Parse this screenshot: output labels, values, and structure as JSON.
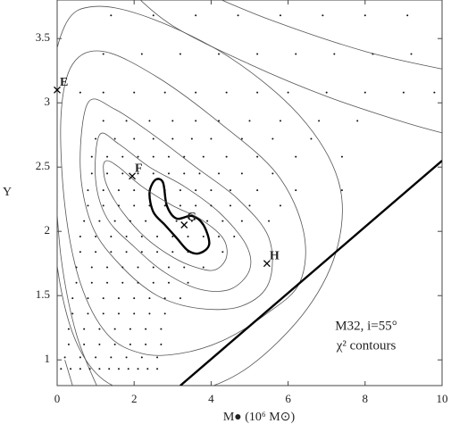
{
  "chart_data": {
    "type": "contour",
    "xlabel": "M● (10⁶ M⊙)",
    "ylabel": "Υ",
    "annotations": [
      "M32, i=55°",
      "χ² contours"
    ],
    "xlim": [
      0,
      10
    ],
    "ylim": [
      0.8,
      3.8
    ],
    "xticks": [
      0,
      2,
      4,
      6,
      8,
      10
    ],
    "yticks": [
      1,
      1.5,
      2,
      2.5,
      3,
      3.5
    ],
    "line_color": "#555",
    "best_color": "#000",
    "contours": [
      {
        "x": [
          2.4,
          2.55,
          2.75,
          2.85,
          3.1,
          3.5,
          3.8,
          3.95,
          3.7,
          3.4,
          3.1,
          2.8,
          2.5,
          2.4
        ],
        "y": [
          2.3,
          2.4,
          2.38,
          2.2,
          2.1,
          2.12,
          2.05,
          1.9,
          1.83,
          1.85,
          1.95,
          2.05,
          2.15,
          2.3
        ],
        "bold": true
      },
      {
        "x": [
          1.3,
          1.6,
          2.2,
          3,
          3.7,
          4.3,
          4.4,
          4.1,
          3.6,
          3,
          2.3,
          1.7,
          1.3,
          1.2,
          1.3
        ],
        "y": [
          2.55,
          2.5,
          2.35,
          2.2,
          2.1,
          1.95,
          1.8,
          1.7,
          1.72,
          1.8,
          1.95,
          2.15,
          2.35,
          2.5,
          2.55
        ]
      },
      {
        "x": [
          1.1,
          1.6,
          2.4,
          3.3,
          4.2,
          4.9,
          5,
          4.5,
          3.7,
          2.8,
          2,
          1.3,
          1,
          1.1
        ],
        "y": [
          2.75,
          2.68,
          2.5,
          2.35,
          2.15,
          1.9,
          1.7,
          1.55,
          1.55,
          1.68,
          1.88,
          2.1,
          2.4,
          2.75
        ]
      },
      {
        "x": [
          0.8,
          1.5,
          2.5,
          3.6,
          4.7,
          5.5,
          5.5,
          4.8,
          3.7,
          2.6,
          1.6,
          0.9,
          0.6,
          0.8
        ],
        "y": [
          3,
          2.95,
          2.75,
          2.5,
          2.25,
          1.95,
          1.6,
          1.42,
          1.4,
          1.5,
          1.75,
          2.05,
          2.5,
          3
        ]
      },
      {
        "x": [
          6.3,
          6.4,
          5.7,
          4.2,
          2.6,
          1.2,
          0.4,
          0.1,
          0.2,
          0.6,
          1.3,
          2.2,
          3.2,
          4.3,
          5.4,
          6.3
        ],
        "y": [
          1.6,
          2,
          2.45,
          2.85,
          3.2,
          3.4,
          3.3,
          2.9,
          2.2,
          1.6,
          1.2,
          1.05,
          1.05,
          1.15,
          1.35,
          1.6
        ]
      },
      {
        "x": [
          7.3,
          7.3,
          6.3,
          4.5,
          2.5,
          1,
          0.2,
          -0.2,
          -0.1,
          0.3,
          1,
          2,
          3.5,
          5,
          6.5,
          7.3
        ],
        "y": [
          1.9,
          2.4,
          2.9,
          3.35,
          3.65,
          3.75,
          3.6,
          3,
          2,
          1.3,
          0.9,
          0.75,
          0.75,
          0.95,
          1.4,
          1.9
        ]
      },
      {
        "x": [
          1.8,
          3,
          5,
          7,
          9,
          10.2
        ],
        "y": [
          3.9,
          3.6,
          3.3,
          3.05,
          2.85,
          2.75
        ]
      },
      {
        "x": [
          3.5,
          5.5,
          8,
          10.2
        ],
        "y": [
          3.9,
          3.65,
          3.4,
          3.25
        ]
      },
      {
        "x": [
          -0.1,
          0.1,
          0.5,
          1.1
        ],
        "y": [
          2.6,
          1.8,
          1.2,
          0.75
        ]
      },
      {
        "x": [
          0.2,
          0.5
        ],
        "y": [
          1.0,
          0.7
        ]
      }
    ],
    "boundary": {
      "x": [
        3.2,
        10
      ],
      "y": [
        0.8,
        2.55
      ]
    },
    "labeled_points": {
      "labels": [
        "E",
        "F",
        "G",
        "H"
      ],
      "x": [
        0,
        1.95,
        3.3,
        5.45
      ],
      "y": [
        3.1,
        2.43,
        2.05,
        1.75
      ]
    },
    "model_grid": [
      {
        "y": 3.68,
        "x": [
          1.4,
          2.5,
          3.6,
          4.7,
          5.8,
          6.9,
          8,
          9.1
        ]
      },
      {
        "y": 3.38,
        "x": [
          1.2,
          2.2,
          3.2,
          4.2,
          5.2,
          6.2,
          7.2,
          8.2,
          9.2
        ]
      },
      {
        "y": 3.08,
        "x": [
          0.6,
          1.2,
          2,
          2.8,
          3.6,
          4.4,
          5.2,
          6,
          7,
          8,
          9,
          9.8
        ]
      },
      {
        "y": 2.86,
        "x": [
          1.2,
          1.8,
          2.4,
          3,
          3.6,
          4.2,
          5,
          5.8,
          6.8,
          7.8
        ]
      },
      {
        "y": 2.72,
        "x": [
          1,
          1.5,
          2,
          2.5,
          3,
          3.5,
          4,
          4.8,
          5.6,
          6.6
        ]
      },
      {
        "y": 2.58,
        "x": [
          0.9,
          1.3,
          1.7,
          2.1,
          2.5,
          2.9,
          3.3,
          3.8,
          4.4,
          5.2,
          6.2,
          7.4
        ]
      },
      {
        "y": 2.45,
        "x": [
          0.9,
          1.3,
          1.7,
          2.1,
          2.5,
          2.9,
          3.3,
          3.7,
          4.2,
          4.8,
          5.6
        ]
      },
      {
        "y": 2.32,
        "x": [
          0.8,
          1.2,
          1.6,
          2,
          2.4,
          2.8,
          3.2,
          3.6,
          4,
          4.5,
          5.2,
          6.2,
          7.4
        ]
      },
      {
        "y": 2.2,
        "x": [
          0.8,
          1.2,
          1.6,
          2,
          2.4,
          2.8,
          3.2,
          3.6,
          4,
          4.5,
          5,
          5.8
        ]
      },
      {
        "y": 2.08,
        "x": [
          0.7,
          1.1,
          1.5,
          1.9,
          2.3,
          2.7,
          3.1,
          3.5,
          3.9,
          4.3,
          4.8,
          5.5
        ]
      },
      {
        "y": 1.96,
        "x": [
          0.6,
          1,
          1.4,
          1.8,
          2.2,
          2.6,
          3,
          3.4,
          3.8,
          4.2,
          4.6
        ]
      },
      {
        "y": 1.84,
        "x": [
          0.6,
          1,
          1.4,
          1.8,
          2.2,
          2.6,
          3,
          3.4,
          3.8,
          4.3
        ]
      },
      {
        "y": 1.72,
        "x": [
          0.5,
          0.9,
          1.3,
          1.7,
          2.1,
          2.5,
          2.9,
          3.3,
          3.8
        ]
      },
      {
        "y": 1.6,
        "x": [
          0.5,
          0.9,
          1.3,
          1.7,
          2.1,
          2.5,
          2.9,
          3.4
        ]
      },
      {
        "y": 1.48,
        "x": [
          0.4,
          0.8,
          1.2,
          1.6,
          2,
          2.4,
          2.8,
          3.2
        ]
      },
      {
        "y": 1.36,
        "x": [
          0.4,
          0.8,
          1.2,
          1.6,
          2,
          2.4,
          2.8
        ]
      },
      {
        "y": 1.24,
        "x": [
          0.3,
          0.7,
          1.1,
          1.5,
          1.9,
          2.3,
          2.7
        ]
      },
      {
        "y": 1.12,
        "x": [
          0.3,
          0.7,
          1.1,
          1.5,
          1.9,
          2.3,
          2.7
        ]
      },
      {
        "y": 1.02,
        "x": [
          0.2,
          0.6,
          1,
          1.4,
          1.8,
          2.2,
          2.6
        ]
      },
      {
        "y": 0.93,
        "x": [
          0.1,
          0.35,
          0.6,
          0.85,
          1.1,
          1.35,
          1.6,
          1.85,
          2.1,
          2.35,
          2.6
        ]
      }
    ]
  }
}
